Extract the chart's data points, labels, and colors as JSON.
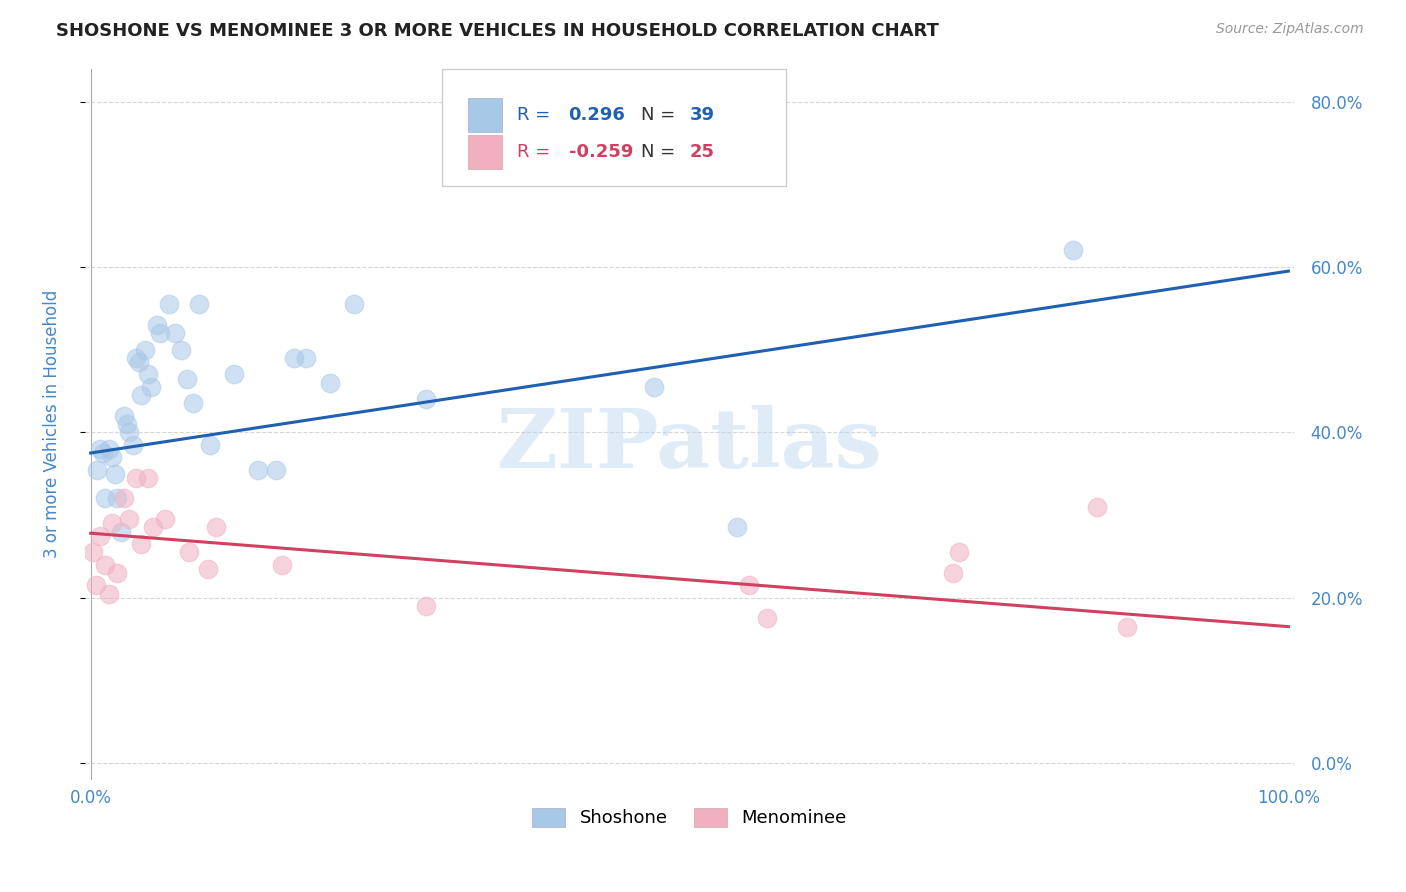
{
  "title": "SHOSHONE VS MENOMINEE 3 OR MORE VEHICLES IN HOUSEHOLD CORRELATION CHART",
  "source": "Source: ZipAtlas.com",
  "ylabel": "3 or more Vehicles in Household",
  "watermark": "ZIPatlas",
  "xmin": 0.0,
  "xmax": 1.0,
  "ymin": -0.02,
  "ymax": 0.84,
  "yticks": [
    0.0,
    0.2,
    0.4,
    0.6,
    0.8
  ],
  "ytick_labels": [
    "0.0%",
    "20.0%",
    "40.0%",
    "60.0%",
    "80.0%"
  ],
  "xticks": [
    0.0,
    0.2,
    0.4,
    0.6,
    0.8,
    1.0
  ],
  "xtick_labels": [
    "0.0%",
    "",
    "",
    "",
    "",
    "100.0%"
  ],
  "shoshone_R": 0.296,
  "shoshone_N": 39,
  "menominee_R": -0.259,
  "menominee_N": 25,
  "shoshone_marker_color": "#a8c8e8",
  "shoshone_line_color": "#2060b0",
  "menominee_marker_color": "#f0b0c0",
  "menominee_line_color": "#d04060",
  "shoshone_x": [
    0.005,
    0.008,
    0.01,
    0.012,
    0.015,
    0.018,
    0.02,
    0.022,
    0.025,
    0.028,
    0.03,
    0.032,
    0.035,
    0.038,
    0.04,
    0.042,
    0.045,
    0.048,
    0.05,
    0.055,
    0.058,
    0.065,
    0.07,
    0.075,
    0.08,
    0.085,
    0.09,
    0.1,
    0.12,
    0.14,
    0.155,
    0.17,
    0.18,
    0.2,
    0.22,
    0.28,
    0.47,
    0.54,
    0.82
  ],
  "shoshone_y": [
    0.355,
    0.38,
    0.375,
    0.32,
    0.38,
    0.37,
    0.35,
    0.32,
    0.28,
    0.42,
    0.41,
    0.4,
    0.385,
    0.49,
    0.485,
    0.445,
    0.5,
    0.47,
    0.455,
    0.53,
    0.52,
    0.555,
    0.52,
    0.5,
    0.465,
    0.435,
    0.555,
    0.385,
    0.47,
    0.355,
    0.355,
    0.49,
    0.49,
    0.46,
    0.555,
    0.44,
    0.455,
    0.285,
    0.62
  ],
  "menominee_x": [
    0.002,
    0.004,
    0.008,
    0.012,
    0.015,
    0.018,
    0.022,
    0.028,
    0.032,
    0.038,
    0.042,
    0.048,
    0.052,
    0.062,
    0.082,
    0.098,
    0.105,
    0.16,
    0.28,
    0.55,
    0.565,
    0.72,
    0.725,
    0.84,
    0.865
  ],
  "menominee_y": [
    0.255,
    0.215,
    0.275,
    0.24,
    0.205,
    0.29,
    0.23,
    0.32,
    0.295,
    0.345,
    0.265,
    0.345,
    0.285,
    0.295,
    0.255,
    0.235,
    0.285,
    0.24,
    0.19,
    0.215,
    0.175,
    0.23,
    0.255,
    0.31,
    0.165
  ],
  "background_color": "#ffffff",
  "grid_color": "#cccccc",
  "title_color": "#222222",
  "axis_label_color": "#4488cc",
  "tick_label_color": "#4488cc",
  "marker_size": 180,
  "marker_alpha": 0.55,
  "line_width": 2.2,
  "shoshone_line_x": [
    0.0,
    1.0
  ],
  "shoshone_line_y": [
    0.375,
    0.595
  ],
  "menominee_line_x": [
    0.0,
    1.0
  ],
  "menominee_line_y": [
    0.278,
    0.165
  ],
  "legend_R_label": "R = ",
  "legend_N_label": "N = "
}
